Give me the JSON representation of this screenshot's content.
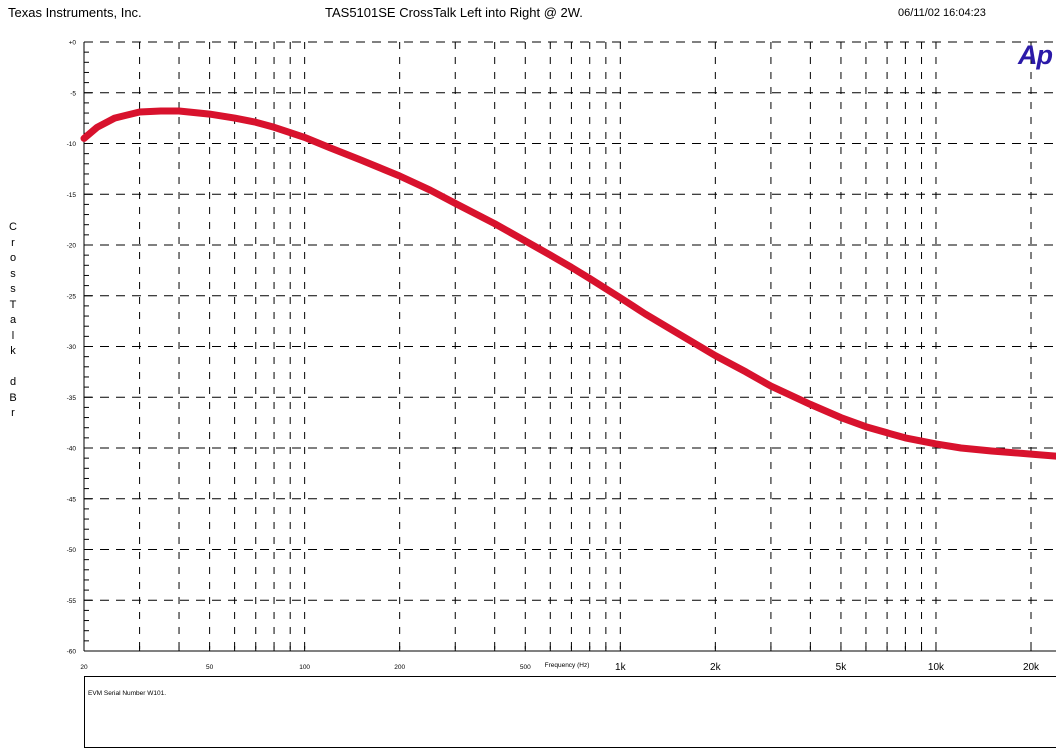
{
  "header": {
    "company": "Texas Instruments, Inc.",
    "title": "TAS5101SE   CrossTalk Left into Right @ 2W.",
    "timestamp": "06/11/02 16:04:23"
  },
  "logo_text": "Ap",
  "notes": {
    "serial": "EVM Serial Number W101."
  },
  "chart_data": {
    "type": "line",
    "title": "TAS5101SE   CrossTalk Left into Right @ 2W.",
    "xlabel": "Frequency (Hz)",
    "ylabel": "CrossTalk dBr",
    "x_scale": "log",
    "xlim": [
      20,
      24000
    ],
    "ylim": [
      -60,
      0
    ],
    "grid": true,
    "line_color": "#d8122d",
    "x_ticks": [
      {
        "value": 20,
        "label": "20"
      },
      {
        "value": 50,
        "label": "50"
      },
      {
        "value": 100,
        "label": "100"
      },
      {
        "value": 200,
        "label": "200"
      },
      {
        "value": 500,
        "label": "500"
      },
      {
        "value": 1000,
        "label": "1k"
      },
      {
        "value": 2000,
        "label": "2k"
      },
      {
        "value": 5000,
        "label": "5k"
      },
      {
        "value": 10000,
        "label": "10k"
      },
      {
        "value": 20000,
        "label": "20k"
      }
    ],
    "y_ticks": [
      {
        "value": 0,
        "label": "+0"
      },
      {
        "value": -5,
        "label": "-5"
      },
      {
        "value": -10,
        "label": "-10"
      },
      {
        "value": -15,
        "label": "-15"
      },
      {
        "value": -20,
        "label": "-20"
      },
      {
        "value": -25,
        "label": "-25"
      },
      {
        "value": -30,
        "label": "-30"
      },
      {
        "value": -35,
        "label": "-35"
      },
      {
        "value": -40,
        "label": "-40"
      },
      {
        "value": -45,
        "label": "-45"
      },
      {
        "value": -50,
        "label": "-50"
      },
      {
        "value": -55,
        "label": "-55"
      },
      {
        "value": -60,
        "label": "-60"
      }
    ],
    "series": [
      {
        "x": [
          20,
          22,
          25,
          30,
          35,
          40,
          50,
          60,
          70,
          80,
          100,
          120,
          150,
          200,
          250,
          300,
          400,
          500,
          600,
          700,
          800,
          1000,
          1200,
          1500,
          2000,
          2500,
          3000,
          4000,
          5000,
          6000,
          7000,
          8000,
          10000,
          12000,
          15000,
          20000,
          24000
        ],
        "y": [
          -9.5,
          -8.4,
          -7.5,
          -6.9,
          -6.8,
          -6.8,
          -7.1,
          -7.5,
          -7.9,
          -8.4,
          -9.4,
          -10.4,
          -11.6,
          -13.2,
          -14.6,
          -15.9,
          -17.9,
          -19.6,
          -21.0,
          -22.2,
          -23.3,
          -25.2,
          -26.8,
          -28.6,
          -30.9,
          -32.5,
          -33.9,
          -35.7,
          -37.0,
          -37.9,
          -38.5,
          -39.0,
          -39.6,
          -40.0,
          -40.3,
          -40.6,
          -40.8
        ]
      }
    ]
  }
}
